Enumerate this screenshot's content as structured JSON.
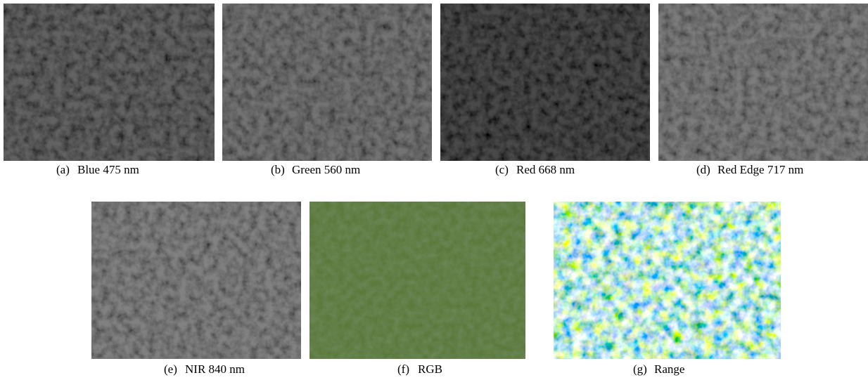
{
  "figure": {
    "panels": [
      {
        "label": "(a)",
        "caption": "Blue 475 nm"
      },
      {
        "label": "(b)",
        "caption": "Green 560 nm"
      },
      {
        "label": "(c)",
        "caption": "Red 668 nm"
      },
      {
        "label": "(d)",
        "caption": "Red Edge 717 nm"
      },
      {
        "label": "(e)",
        "caption": "NIR 840 nm"
      },
      {
        "label": "(f)",
        "caption": "RGB"
      },
      {
        "label": "(g)",
        "caption": "Range"
      }
    ]
  }
}
